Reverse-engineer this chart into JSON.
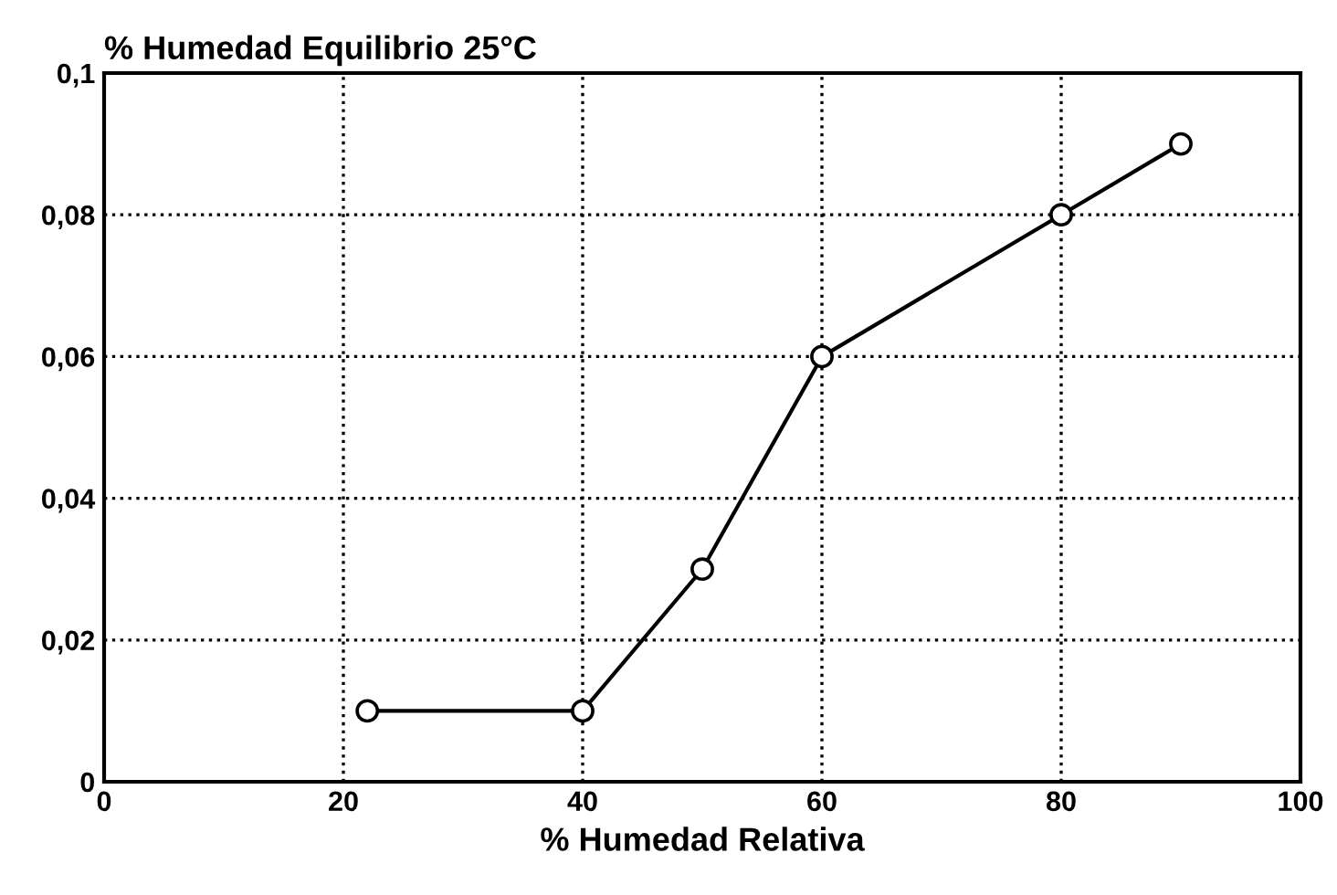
{
  "chart_data": {
    "type": "line",
    "title": "% Humedad Equilibrio 25°C",
    "xlabel": "% Humedad Relativa",
    "x": [
      22,
      40,
      50,
      60,
      80,
      90
    ],
    "series": [
      {
        "color": "#000000",
        "values": [
          0.01,
          0.01,
          0.03,
          0.06,
          0.08,
          0.09
        ]
      }
    ],
    "xlim": [
      0,
      100
    ],
    "xticks": [
      0,
      20,
      40,
      60,
      80,
      100
    ],
    "ylim": [
      0,
      0.1
    ],
    "yticks": [
      0,
      {
        "value": 0.02,
        "label": "0,02"
      },
      {
        "value": 0.04,
        "label": "0,04"
      },
      {
        "value": 0.06,
        "label": "0,06"
      },
      {
        "value": 0.08,
        "label": "0,08"
      },
      {
        "value": 0.1,
        "label": "0,1"
      }
    ],
    "grid": true,
    "marker": "circle",
    "line_style": "solid"
  }
}
